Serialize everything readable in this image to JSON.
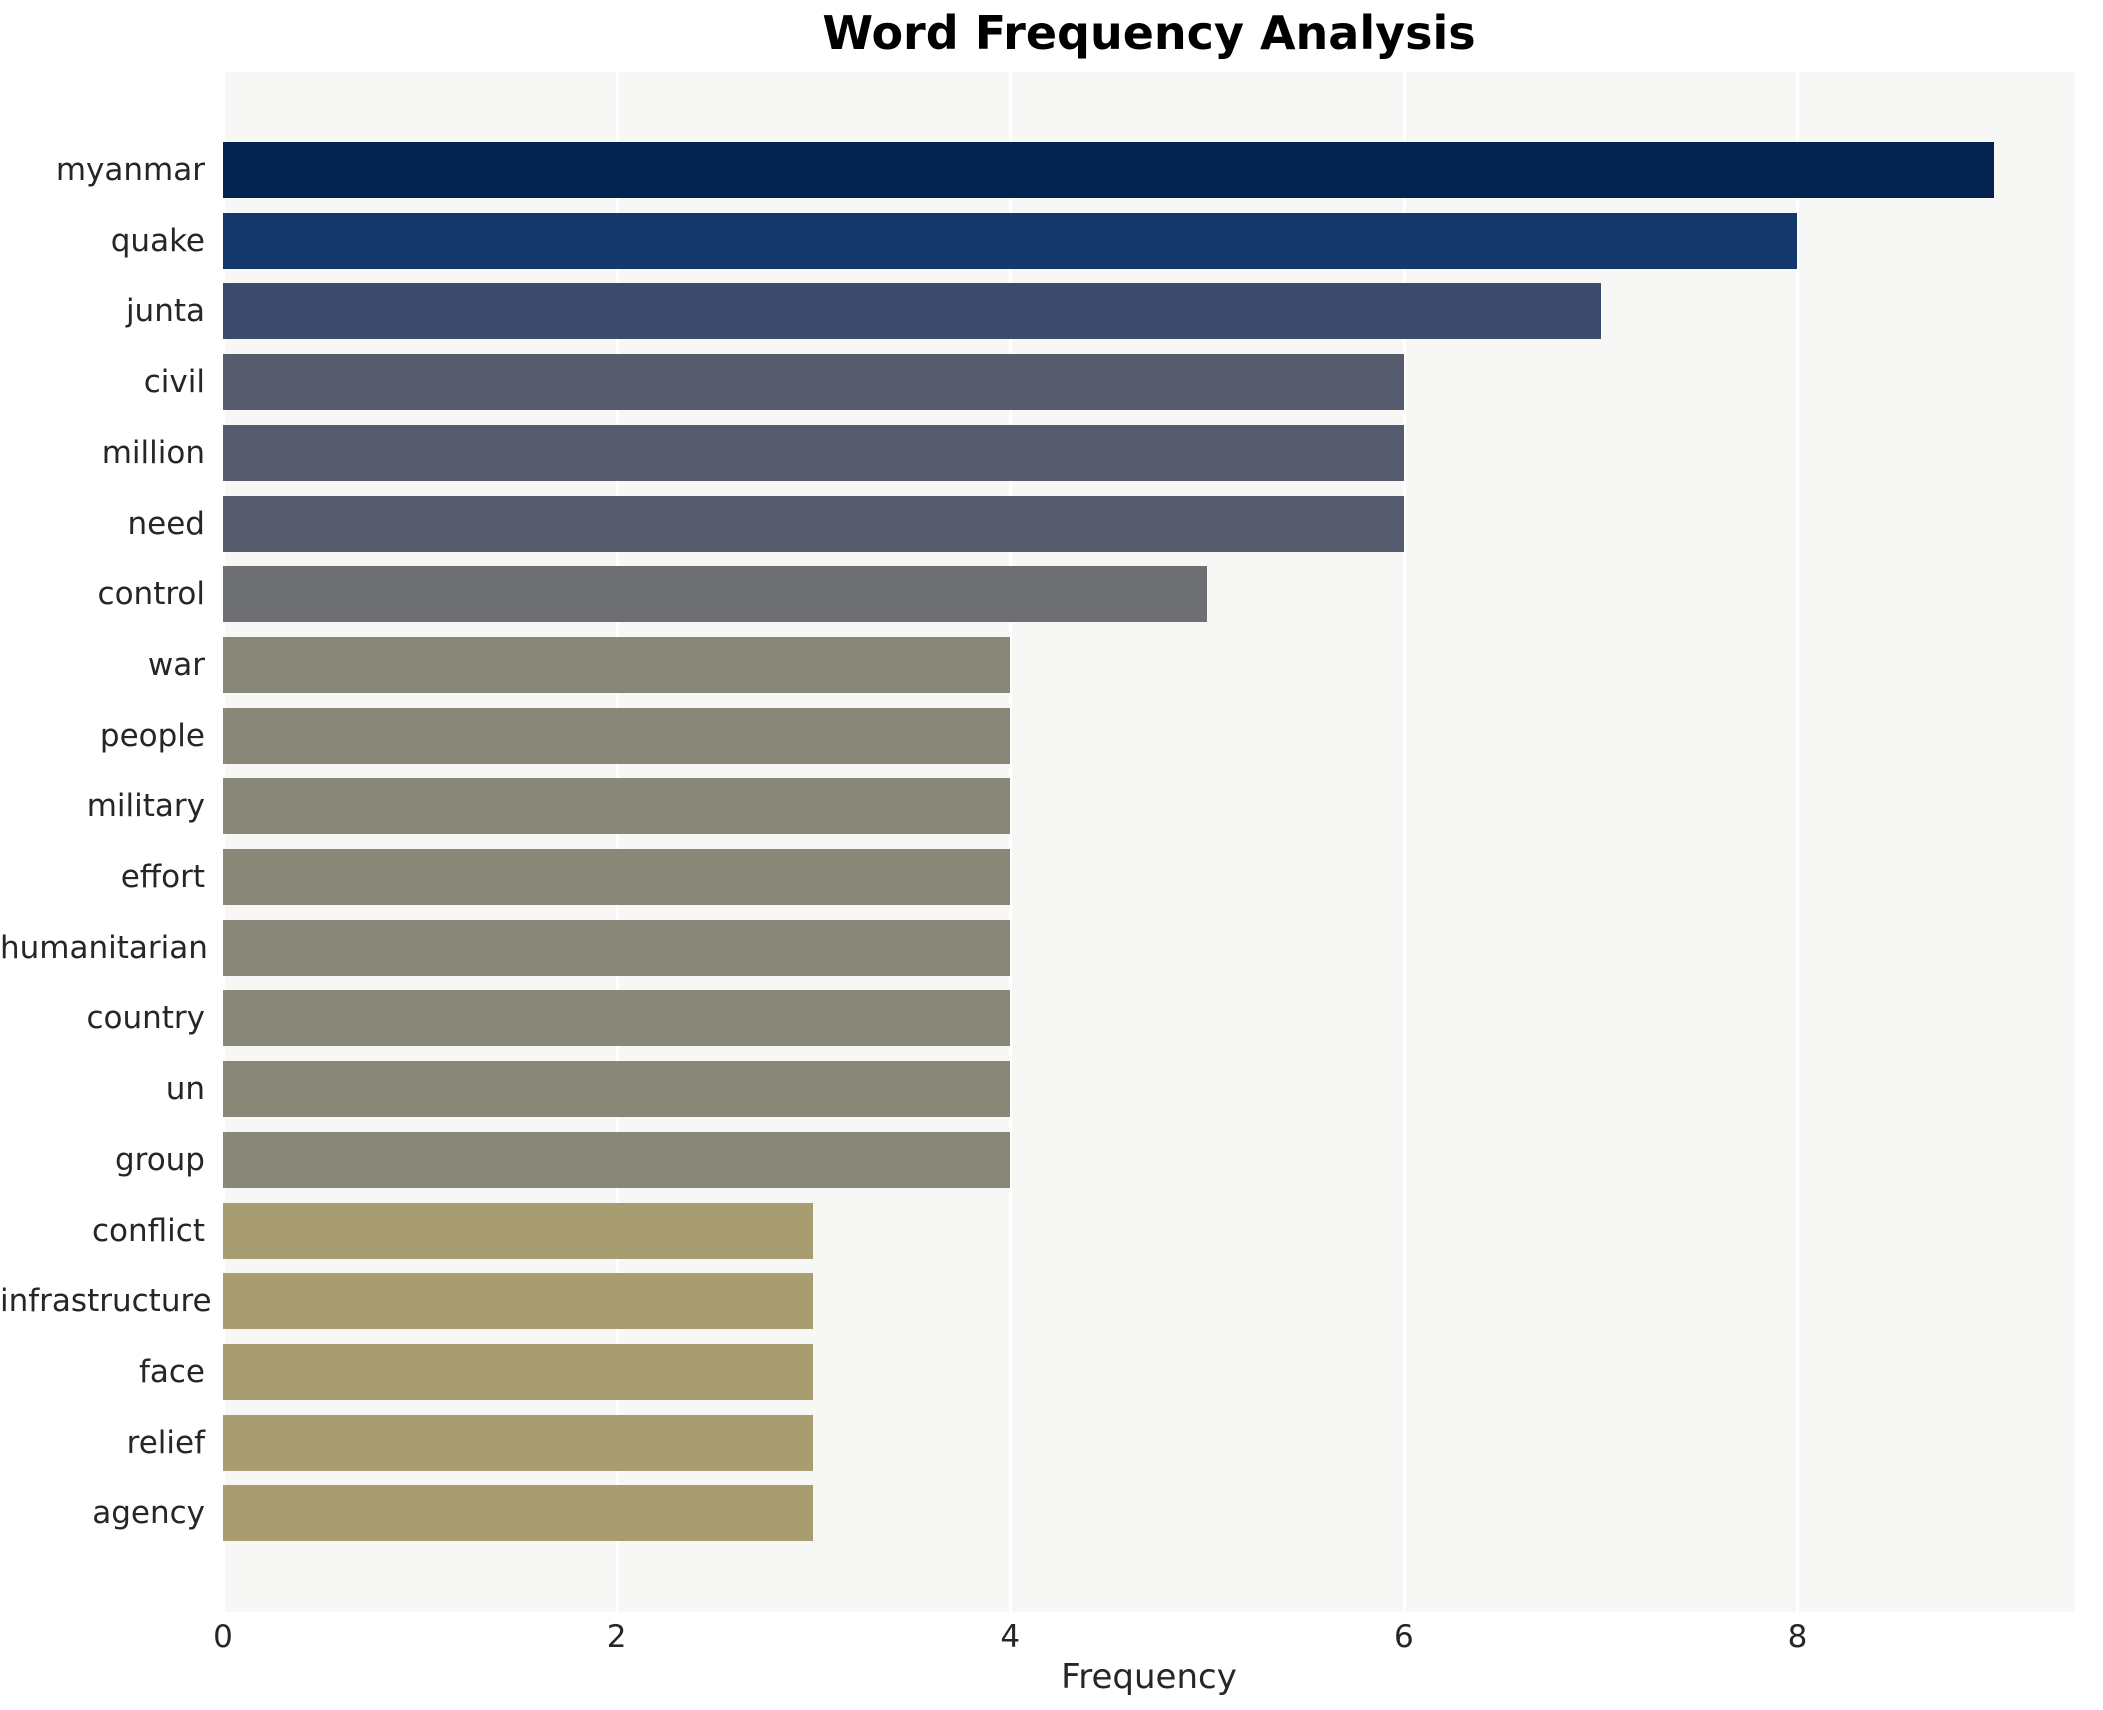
{
  "chart_data": {
    "type": "bar",
    "orientation": "horizontal",
    "title": "Word Frequency Analysis",
    "xlabel": "Frequency",
    "ylabel": "",
    "categories": [
      "myanmar",
      "quake",
      "junta",
      "civil",
      "million",
      "need",
      "control",
      "war",
      "people",
      "military",
      "effort",
      "humanitarian",
      "country",
      "un",
      "group",
      "conflict",
      "infrastructure",
      "face",
      "relief",
      "agency"
    ],
    "values": [
      9,
      8,
      7,
      6,
      6,
      6,
      5,
      4,
      4,
      4,
      4,
      4,
      4,
      4,
      4,
      3,
      3,
      3,
      3,
      3
    ],
    "bar_colors": [
      "#04234e",
      "#15386b",
      "#3b4a6d",
      "#565b6d",
      "#565b6d",
      "#565b6d",
      "#6e6f72",
      "#898777",
      "#898777",
      "#898777",
      "#898777",
      "#898777",
      "#898777",
      "#898777",
      "#898777",
      "#a79d70",
      "#a79d70",
      "#a79d70",
      "#a79d70",
      "#a79d70"
    ],
    "xticks": [
      0,
      2,
      4,
      6,
      8
    ],
    "xlim": [
      0,
      9.41
    ],
    "grid": true,
    "legend": "none",
    "plot_bg_color": "#f7f7f6",
    "gridline_color": "#ffffff",
    "title_color": "#000000",
    "tick_label_color": "#262626"
  }
}
